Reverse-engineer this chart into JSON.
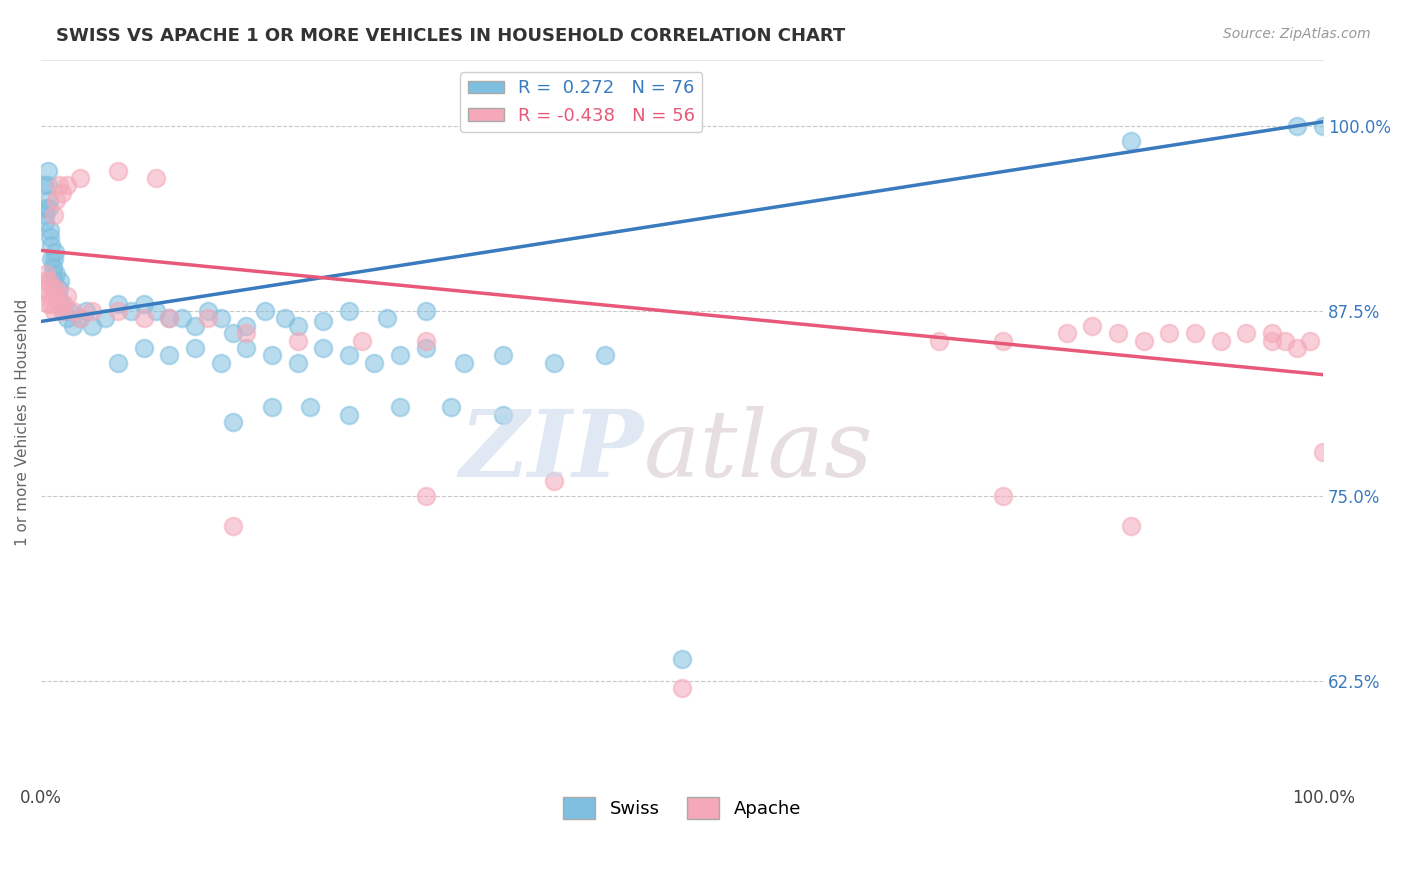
{
  "title": "SWISS VS APACHE 1 OR MORE VEHICLES IN HOUSEHOLD CORRELATION CHART",
  "source": "Source: ZipAtlas.com",
  "xlabel": "",
  "ylabel": "1 or more Vehicles in Household",
  "xlim": [
    0,
    1.0
  ],
  "ylim": [
    0.555,
    1.045
  ],
  "yticks": [
    0.625,
    0.75,
    0.875,
    1.0
  ],
  "ytick_labels": [
    "62.5%",
    "75.0%",
    "87.5%",
    "100.0%"
  ],
  "xticks": [
    0,
    1.0
  ],
  "xtick_labels": [
    "0.0%",
    "100.0%"
  ],
  "blue_R": 0.272,
  "blue_N": 76,
  "pink_R": -0.438,
  "pink_N": 56,
  "blue_color": "#7fbfdf",
  "pink_color": "#f4a8b8",
  "blue_line_color": "#3a7abf",
  "pink_line_color": "#e85878",
  "background_color": "#ffffff",
  "grid_color": "#c8c8c8",
  "blue_line_x0": 0.0,
  "blue_line_y0": 0.868,
  "blue_line_x1": 1.0,
  "blue_line_y1": 1.003,
  "pink_line_x0": 0.0,
  "pink_line_y0": 0.916,
  "pink_line_x1": 1.0,
  "pink_line_y1": 0.832,
  "swiss_x": [
    0.002,
    0.003,
    0.003,
    0.004,
    0.005,
    0.005,
    0.006,
    0.006,
    0.007,
    0.007,
    0.008,
    0.008,
    0.009,
    0.009,
    0.01,
    0.01,
    0.011,
    0.012,
    0.013,
    0.014,
    0.015,
    0.016,
    0.018,
    0.02,
    0.022,
    0.025,
    0.03,
    0.035,
    0.04,
    0.05,
    0.06,
    0.07,
    0.08,
    0.09,
    0.1,
    0.11,
    0.12,
    0.13,
    0.14,
    0.15,
    0.16,
    0.175,
    0.19,
    0.2,
    0.22,
    0.24,
    0.27,
    0.3,
    0.06,
    0.08,
    0.1,
    0.12,
    0.14,
    0.16,
    0.18,
    0.2,
    0.22,
    0.24,
    0.26,
    0.28,
    0.3,
    0.33,
    0.36,
    0.4,
    0.44,
    0.15,
    0.18,
    0.21,
    0.24,
    0.28,
    0.32,
    0.36,
    0.85,
    0.98,
    1.0,
    0.5
  ],
  "swiss_y": [
    0.96,
    0.94,
    0.935,
    0.945,
    0.96,
    0.97,
    0.945,
    0.95,
    0.925,
    0.93,
    0.91,
    0.92,
    0.905,
    0.9,
    0.895,
    0.91,
    0.915,
    0.9,
    0.885,
    0.89,
    0.895,
    0.88,
    0.875,
    0.87,
    0.875,
    0.865,
    0.87,
    0.875,
    0.865,
    0.87,
    0.88,
    0.875,
    0.88,
    0.875,
    0.87,
    0.87,
    0.865,
    0.875,
    0.87,
    0.86,
    0.865,
    0.875,
    0.87,
    0.865,
    0.868,
    0.875,
    0.87,
    0.875,
    0.84,
    0.85,
    0.845,
    0.85,
    0.84,
    0.85,
    0.845,
    0.84,
    0.85,
    0.845,
    0.84,
    0.845,
    0.85,
    0.84,
    0.845,
    0.84,
    0.845,
    0.8,
    0.81,
    0.81,
    0.805,
    0.81,
    0.81,
    0.805,
    0.99,
    1.0,
    1.0,
    0.64
  ],
  "apache_x": [
    0.002,
    0.003,
    0.004,
    0.005,
    0.006,
    0.007,
    0.008,
    0.009,
    0.01,
    0.011,
    0.012,
    0.014,
    0.016,
    0.018,
    0.02,
    0.025,
    0.03,
    0.04,
    0.06,
    0.08,
    0.1,
    0.13,
    0.16,
    0.2,
    0.25,
    0.3,
    0.01,
    0.012,
    0.014,
    0.016,
    0.02,
    0.03,
    0.06,
    0.09,
    0.7,
    0.75,
    0.8,
    0.82,
    0.84,
    0.86,
    0.88,
    0.9,
    0.92,
    0.94,
    0.96,
    0.97,
    0.98,
    0.99,
    1.0,
    0.96,
    0.3,
    0.4,
    0.15,
    0.5,
    0.85,
    0.75
  ],
  "apache_y": [
    0.89,
    0.895,
    0.9,
    0.88,
    0.895,
    0.885,
    0.88,
    0.89,
    0.875,
    0.885,
    0.89,
    0.88,
    0.875,
    0.88,
    0.885,
    0.875,
    0.87,
    0.875,
    0.875,
    0.87,
    0.87,
    0.87,
    0.86,
    0.855,
    0.855,
    0.855,
    0.94,
    0.95,
    0.96,
    0.955,
    0.96,
    0.965,
    0.97,
    0.965,
    0.855,
    0.855,
    0.86,
    0.865,
    0.86,
    0.855,
    0.86,
    0.86,
    0.855,
    0.86,
    0.855,
    0.855,
    0.85,
    0.855,
    0.78,
    0.86,
    0.75,
    0.76,
    0.73,
    0.62,
    0.73,
    0.75
  ]
}
